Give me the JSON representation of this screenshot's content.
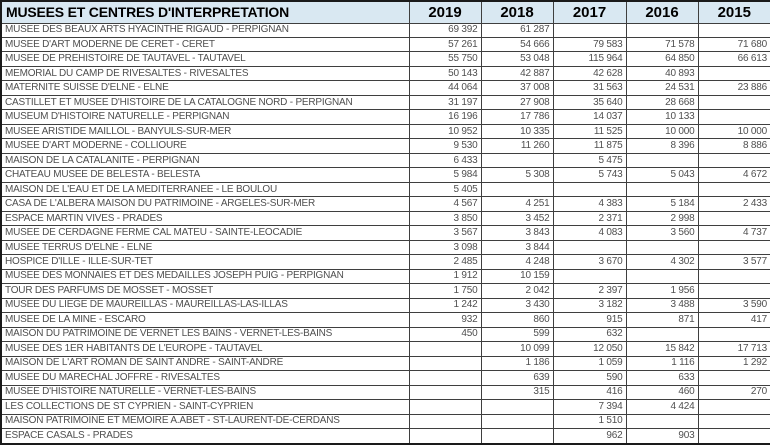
{
  "colors": {
    "header_bg": "#d9e8f2",
    "grid": "#3f3f3f",
    "header_text": "#000000",
    "data_text": "#4f4f4f"
  },
  "header": {
    "title": "MUSEES ET CENTRES D'INTERPRETATION",
    "years": [
      "2019",
      "2018",
      "2017",
      "2016",
      "2015"
    ]
  },
  "rows": [
    {
      "name": "MUSEE DES BEAUX ARTS HYACINTHE RIGAUD - PERPIGNAN",
      "values": [
        "69 392",
        "61 287",
        "",
        "",
        ""
      ]
    },
    {
      "name": "MUSEE D'ART MODERNE DE CERET - CERET",
      "values": [
        "57 261",
        "54 666",
        "79 583",
        "71 578",
        "71 680"
      ]
    },
    {
      "name": "MUSEE DE PREHISTOIRE DE TAUTAVEL - TAUTAVEL",
      "values": [
        "55 750",
        "53 048",
        "115 964",
        "64 850",
        "66 613"
      ]
    },
    {
      "name": "MEMORIAL DU CAMP DE RIVESALTES - RIVESALTES",
      "values": [
        "50 143",
        "42 887",
        "42 628",
        "40 893",
        ""
      ]
    },
    {
      "name": "MATERNITE SUISSE D'ELNE - ELNE",
      "values": [
        "44 064",
        "37 008",
        "31 563",
        "24 531",
        "23 886"
      ]
    },
    {
      "name": "CASTILLET ET MUSEE D'HISTOIRE DE LA CATALOGNE NORD - PERPIGNAN",
      "values": [
        "31 197",
        "27 908",
        "35 640",
        "28 668",
        ""
      ]
    },
    {
      "name": "MUSEUM D'HISTOIRE NATURELLE - PERPIGNAN",
      "values": [
        "16 196",
        "17 786",
        "14 037",
        "10 133",
        ""
      ]
    },
    {
      "name": "MUSEE ARISTIDE MAILLOL - BANYULS-SUR-MER",
      "values": [
        "10 952",
        "10 335",
        "11 525",
        "10 000",
        "10 000"
      ]
    },
    {
      "name": "MUSEE D'ART MODERNE - COLLIOURE",
      "values": [
        "9 530",
        "11 260",
        "11 875",
        "8 396",
        "8 886"
      ]
    },
    {
      "name": "MAISON DE LA CATALANITE - PERPIGNAN",
      "values": [
        "6 433",
        "",
        "5 475",
        "",
        ""
      ]
    },
    {
      "name": "CHATEAU MUSEE DE BELESTA - BELESTA",
      "values": [
        "5 984",
        "5 308",
        "5 743",
        "5 043",
        "4 672"
      ]
    },
    {
      "name": "MAISON DE L'EAU ET DE LA MEDITERRANEE - LE BOULOU",
      "values": [
        "5 405",
        "",
        "",
        "",
        ""
      ]
    },
    {
      "name": "CASA DE L'ALBERA MAISON DU PATRIMOINE - ARGELES-SUR-MER",
      "values": [
        "4 567",
        "4 251",
        "4 383",
        "5 184",
        "2 433"
      ]
    },
    {
      "name": "ESPACE MARTIN VIVES - PRADES",
      "values": [
        "3 850",
        "3 452",
        "2 371",
        "2 998",
        ""
      ]
    },
    {
      "name": "MUSEE DE CERDAGNE FERME CAL MATEU - SAINTE-LEOCADIE",
      "values": [
        "3 567",
        "3 843",
        "4 083",
        "3 560",
        "4 737"
      ]
    },
    {
      "name": "MUSEE TERRUS D'ELNE - ELNE",
      "values": [
        "3 098",
        "3 844",
        "",
        "",
        ""
      ]
    },
    {
      "name": "HOSPICE D'ILLE - ILLE-SUR-TET",
      "values": [
        "2 485",
        "4 248",
        "3 670",
        "4 302",
        "3 577"
      ]
    },
    {
      "name": "MUSEE DES MONNAIES ET DES MEDAILLES JOSEPH PUIG - PERPIGNAN",
      "values": [
        "1 912",
        "10 159",
        "",
        "",
        ""
      ]
    },
    {
      "name": "TOUR DES PARFUMS DE MOSSET - MOSSET",
      "values": [
        "1 750",
        "2 042",
        "2 397",
        "1 956",
        ""
      ]
    },
    {
      "name": "MUSEE DU LIEGE DE MAUREILLAS - MAUREILLAS-LAS-ILLAS",
      "values": [
        "1 242",
        "3 430",
        "3 182",
        "3 488",
        "3 590"
      ]
    },
    {
      "name": "MUSEE DE LA MINE - ESCARO",
      "values": [
        "932",
        "860",
        "915",
        "871",
        "417"
      ]
    },
    {
      "name": "MAISON DU PATRIMOINE DE VERNET LES BAINS - VERNET-LES-BAINS",
      "values": [
        "450",
        "599",
        "632",
        "",
        ""
      ]
    },
    {
      "name": "MUSEE DES 1ER HABITANTS DE L'EUROPE - TAUTAVEL",
      "values": [
        "",
        "10 099",
        "12 050",
        "15 842",
        "17 713"
      ]
    },
    {
      "name": "MAISON DE L'ART ROMAN DE SAINT ANDRE - SAINT-ANDRE",
      "values": [
        "",
        "1 186",
        "1 059",
        "1 116",
        "1 292"
      ]
    },
    {
      "name": "MUSEE DU MARECHAL JOFFRE - RIVESALTES",
      "values": [
        "",
        "639",
        "590",
        "633",
        ""
      ]
    },
    {
      "name": "MUSEE D'HISTOIRE NATURELLE - VERNET-LES-BAINS",
      "values": [
        "",
        "315",
        "416",
        "460",
        "270"
      ]
    },
    {
      "name": "LES COLLECTIONS DE ST CYPRIEN - SAINT-CYPRIEN",
      "values": [
        "",
        "",
        "7 394",
        "4 424",
        ""
      ]
    },
    {
      "name": "MAISON PATRIMOINE ET MEMOIRE A.ABET - ST-LAURENT-DE-CERDANS",
      "values": [
        "",
        "",
        "1 510",
        "",
        ""
      ]
    },
    {
      "name": "ESPACE CASALS - PRADES",
      "values": [
        "",
        "",
        "962",
        "903",
        ""
      ]
    }
  ]
}
